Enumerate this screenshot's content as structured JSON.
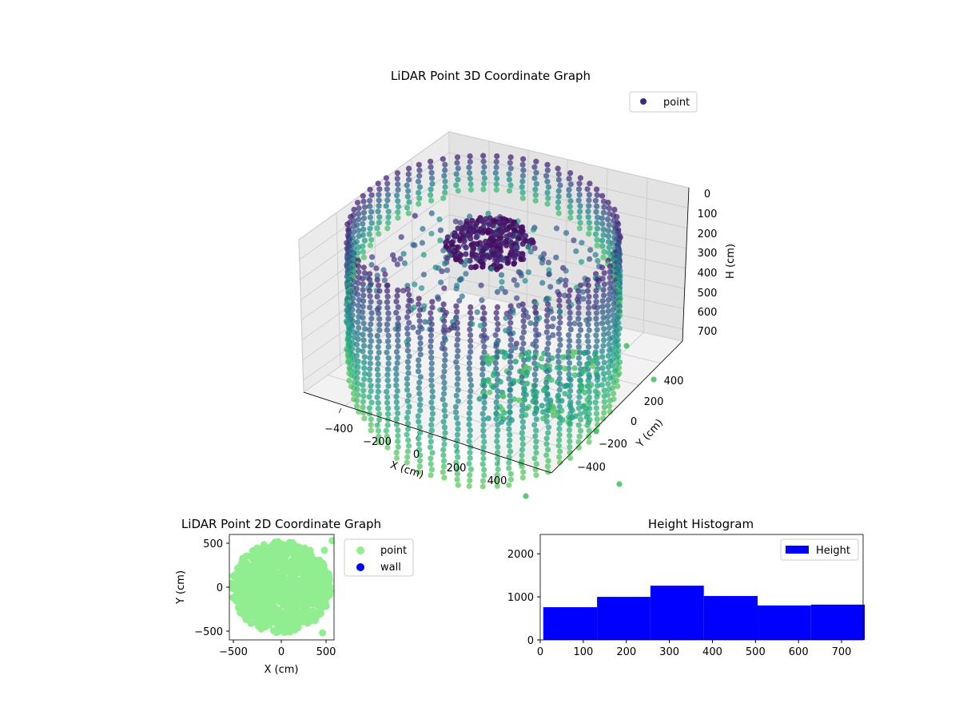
{
  "colors": {
    "point_2d": "#90ee90",
    "wall_2d": "#0000ff",
    "hist_bar": "#0000ff",
    "viridis_top": "#3b2a82",
    "viridis_mid": "#2a8a8a",
    "viridis_low": "#3dbb70"
  },
  "chart_data": [
    {
      "type": "scatter",
      "projection": "3d",
      "title": "LiDAR Point 3D Coordinate Graph",
      "xlabel": "X (cm)",
      "ylabel": "Y (cm)",
      "zlabel": "H (cm)",
      "xticks": [
        "−400",
        "−200",
        "0",
        "200",
        "400"
      ],
      "yticks": [
        "−400",
        "−200",
        "0",
        "200",
        "400"
      ],
      "zticks": [
        "0",
        "100",
        "200",
        "300",
        "400",
        "500",
        "600",
        "700"
      ],
      "xlim": [
        -600,
        600
      ],
      "ylim": [
        -600,
        600
      ],
      "zlim": [
        760,
        0
      ],
      "colormap": "viridis",
      "legend": {
        "position": "top-right",
        "entries": [
          "point"
        ]
      },
      "grid": true,
      "description_hidden": "cylindrical wall of points radius ~500 cm, heights 0-700 cm, dense cluster near top center"
    },
    {
      "type": "scatter",
      "title": "LiDAR Point 2D Coordinate Graph",
      "xlabel": "X (cm)",
      "ylabel": "Y (cm)",
      "xticks": [
        "−500",
        "0",
        "500"
      ],
      "yticks": [
        "−500",
        "0",
        "500"
      ],
      "xlim": [
        -590,
        590
      ],
      "ylim": [
        -590,
        590
      ],
      "legend": {
        "position": "outside-right",
        "entries": [
          "point",
          "wall"
        ]
      },
      "series": [
        {
          "name": "point",
          "shape": "disk",
          "radius": 520,
          "outliers": [
            [
              530,
              530
            ],
            [
              430,
              -520
            ],
            [
              450,
              420
            ]
          ]
        },
        {
          "name": "wall",
          "points": []
        }
      ]
    },
    {
      "type": "bar",
      "title": "Height Histogram",
      "xlabel": "",
      "ylabel": "",
      "xticks": [
        "0",
        "100",
        "200",
        "300",
        "400",
        "500",
        "600",
        "700"
      ],
      "yticks": [
        "0",
        "1000",
        "2000"
      ],
      "xlim": [
        0,
        750
      ],
      "ylim": [
        0,
        2450
      ],
      "legend": {
        "position": "top-right",
        "entries": [
          "Height"
        ]
      },
      "bins": [
        {
          "start": 7,
          "end": 132,
          "count": 760
        },
        {
          "start": 132,
          "end": 256,
          "count": 1000
        },
        {
          "start": 256,
          "end": 380,
          "count": 1260
        },
        {
          "start": 380,
          "end": 505,
          "count": 1020
        },
        {
          "start": 505,
          "end": 629,
          "count": 800
        },
        {
          "start": 629,
          "end": 754,
          "count": 820
        }
      ]
    }
  ]
}
